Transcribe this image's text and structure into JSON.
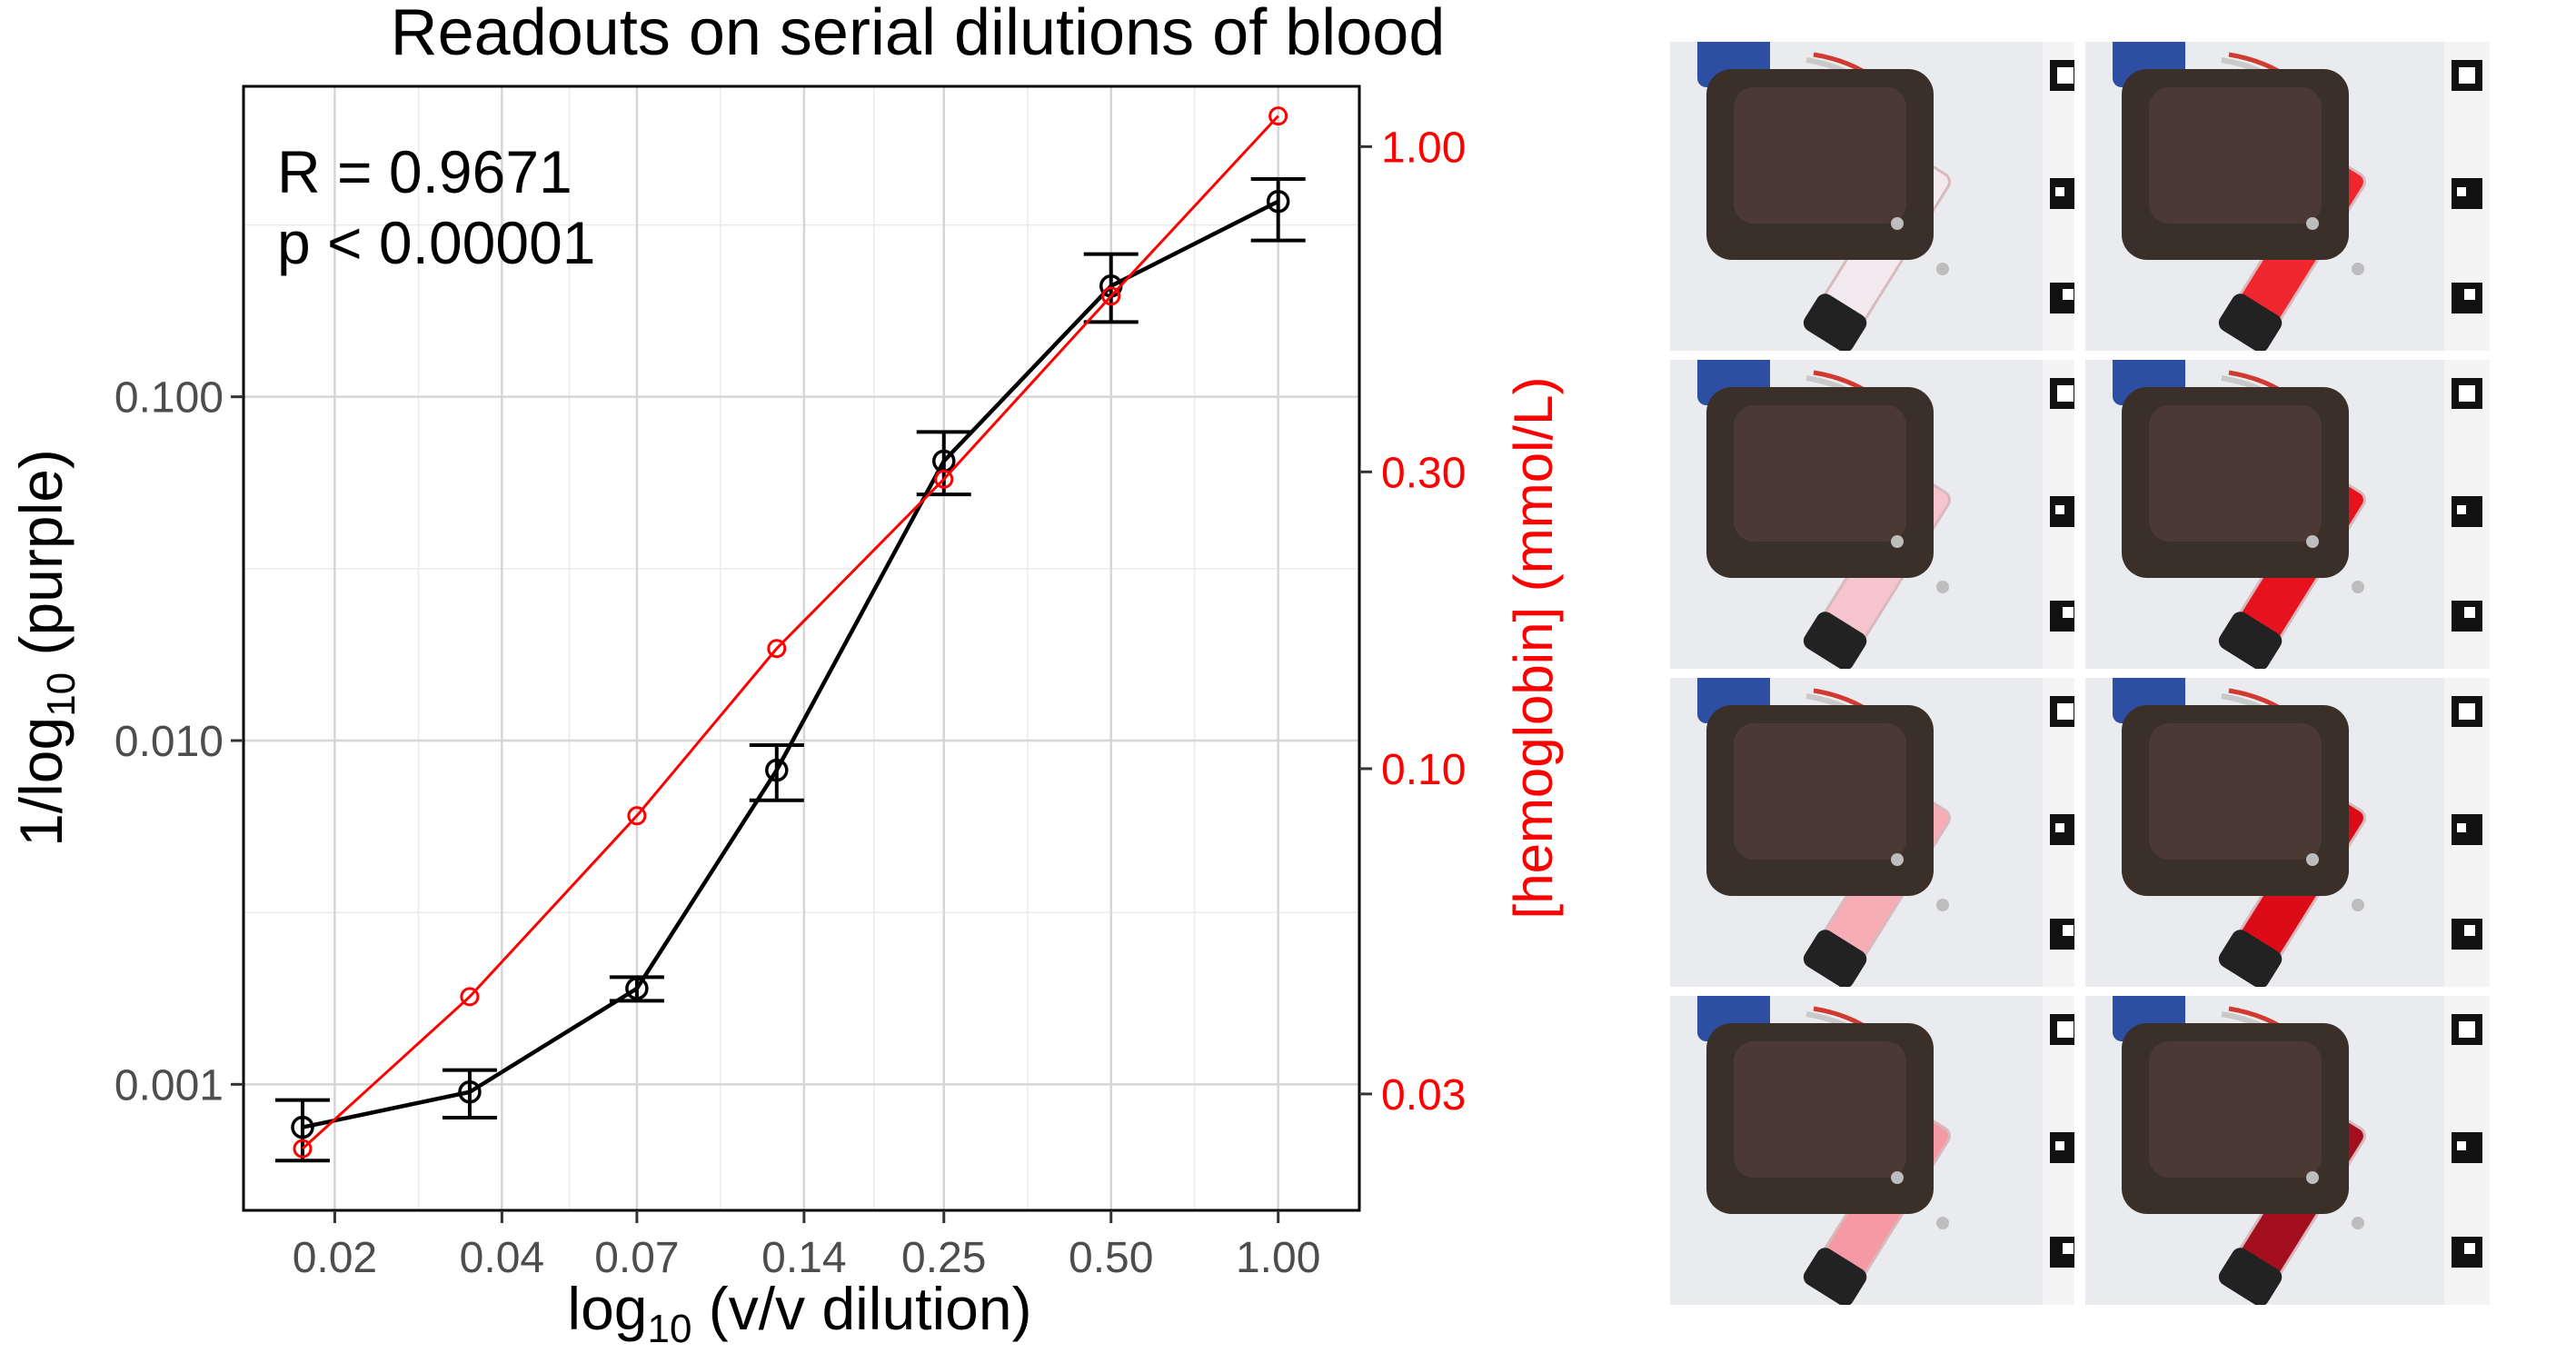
{
  "chart_data": {
    "type": "line",
    "title": "Readouts on serial dilutions of blood",
    "annotations": [
      "R = 0.9671",
      "p < 0.00001"
    ],
    "xlabel": {
      "prefix": "log",
      "sub": "10",
      "suffix": " (v/v dilution)"
    },
    "ylabel_left": {
      "prefix": "1/log",
      "sub": "10",
      "suffix": " (purple)"
    },
    "ylabel_right": "[hemoglobin] (mmol/L)",
    "x_scale": "log",
    "y_left_scale": "log",
    "y_right_scale": "log",
    "x_ticks": [
      {
        "value": 0.02,
        "label": "0.02"
      },
      {
        "value": 0.04,
        "label": "0.04"
      },
      {
        "value": 0.07,
        "label": "0.07"
      },
      {
        "value": 0.14,
        "label": "0.14"
      },
      {
        "value": 0.25,
        "label": "0.25"
      },
      {
        "value": 0.5,
        "label": "0.50"
      },
      {
        "value": 1.0,
        "label": "1.00"
      }
    ],
    "x_minor_ticks": [
      0.0283,
      0.0529,
      0.099,
      0.1871,
      0.3536,
      0.7071
    ],
    "y_left_ticks": [
      {
        "value": 0.001,
        "label": "0.001"
      },
      {
        "value": 0.01,
        "label": "0.010"
      },
      {
        "value": 0.1,
        "label": "0.100"
      }
    ],
    "y_left_minor_ticks": [
      0.000316,
      0.00316,
      0.0316,
      0.316
    ],
    "y_right_ticks": [
      {
        "value": 0.03,
        "label": "0.03"
      },
      {
        "value": 0.1,
        "label": "0.10"
      },
      {
        "value": 0.3,
        "label": "0.30"
      },
      {
        "value": 1.0,
        "label": "1.00"
      }
    ],
    "xlim": [
      0.0137,
      1.4
    ],
    "y_left_lim": [
      0.00043,
      0.8
    ],
    "y_right_lim": [
      0.0195,
      1.25
    ],
    "grid": true,
    "series": [
      {
        "axis": "left",
        "color": "#000000",
        "error_bars": true,
        "x": [
          0.0175,
          0.035,
          0.07,
          0.125,
          0.25,
          0.5,
          1.0
        ],
        "y": [
          0.00075,
          0.00095,
          0.0019,
          0.0082,
          0.065,
          0.21,
          0.37
        ],
        "y_low": [
          0.0006,
          0.0008,
          0.00175,
          0.0067,
          0.052,
          0.165,
          0.285
        ],
        "y_high": [
          0.0009,
          0.0011,
          0.00205,
          0.0097,
          0.079,
          0.26,
          0.43
        ]
      },
      {
        "axis": "right",
        "color": "#ff0000",
        "error_bars": false,
        "x": [
          0.0175,
          0.035,
          0.07,
          0.125,
          0.25,
          0.5,
          1.0
        ],
        "y": [
          0.0245,
          0.043,
          0.084,
          0.156,
          0.292,
          0.575,
          1.12
        ]
      }
    ],
    "panel_images": {
      "count": 8,
      "layout": "4 rows x 2 columns",
      "description": "photos of a dark 3D-printed sensor holding a tube filled with blood dilution; tube color increases in redness",
      "tube_colors": [
        "#f3eaf0",
        "#f0262e",
        "#f6c4cc",
        "#e6121e",
        "#f7adb6",
        "#dc0b18",
        "#f59aa5",
        "#a40f1f"
      ]
    }
  }
}
